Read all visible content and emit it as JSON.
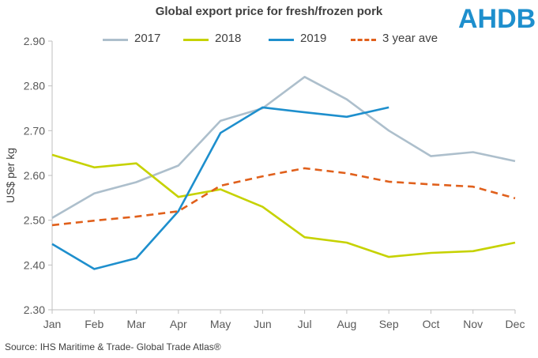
{
  "logo_text": "AHDB",
  "source": "Source:  IHS Maritime & Trade-  Global Trade  Atlas®",
  "chart_data": {
    "type": "line",
    "title": "Global export price for fresh/frozen pork",
    "xlabel": "",
    "ylabel": "US$ per kg",
    "ylim": [
      2.3,
      2.9
    ],
    "yticks": [
      "2.30",
      "2.40",
      "2.50",
      "2.60",
      "2.70",
      "2.80",
      "2.90"
    ],
    "grid": false,
    "legend_position": "top",
    "categories": [
      "Jan",
      "Feb",
      "Mar",
      "Apr",
      "May",
      "Jun",
      "Jul",
      "Aug",
      "Sep",
      "Oct",
      "Nov",
      "Dec"
    ],
    "series": [
      {
        "name": "2017",
        "color": "#adbfcc",
        "dash": "solid",
        "values": [
          2.505,
          2.56,
          2.585,
          2.622,
          2.722,
          2.75,
          2.82,
          2.77,
          2.7,
          2.643,
          2.652,
          2.632
        ]
      },
      {
        "name": "2018",
        "color": "#c6d200",
        "dash": "solid",
        "values": [
          2.646,
          2.618,
          2.627,
          2.552,
          2.569,
          2.53,
          2.462,
          2.45,
          2.418,
          2.427,
          2.431,
          2.45
        ]
      },
      {
        "name": "2019",
        "color": "#1e8fcd",
        "dash": "solid",
        "values": [
          2.447,
          2.391,
          2.415,
          2.52,
          2.695,
          2.752,
          2.741,
          2.731,
          2.752,
          null,
          null,
          null
        ]
      },
      {
        "name": "3 year ave",
        "color": "#e0601c",
        "dash": "dashed",
        "values": [
          2.489,
          2.499,
          2.508,
          2.52,
          2.577,
          2.598,
          2.616,
          2.605,
          2.586,
          2.58,
          2.575,
          2.549
        ]
      }
    ]
  }
}
